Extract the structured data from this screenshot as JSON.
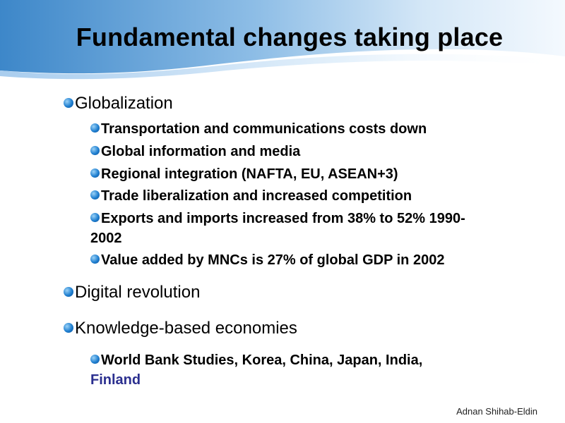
{
  "slide": {
    "title": "Fundamental changes taking place",
    "footer": "Adnan Shihab-Eldin",
    "colors": {
      "accent_blue": "#1f7fd0",
      "link_blue": "#2b2f8f"
    },
    "bullets": [
      {
        "text": "Globalization",
        "children": [
          "Transportation and communications costs down",
          "Global information and media",
          "Regional integration (NAFTA, EU, ASEAN+3)",
          "Trade liberalization and increased competition",
          "Exports and imports increased from 38% to 52% 1990-2002",
          "Value added by MNCs is 27% of global GDP in 2002"
        ]
      },
      {
        "text": "Digital revolution"
      },
      {
        "text": "Knowledge-based economies",
        "children_prefix": "World Bank Studies, Korea, China, Japan, India,",
        "children_highlight": "Finland"
      }
    ]
  }
}
